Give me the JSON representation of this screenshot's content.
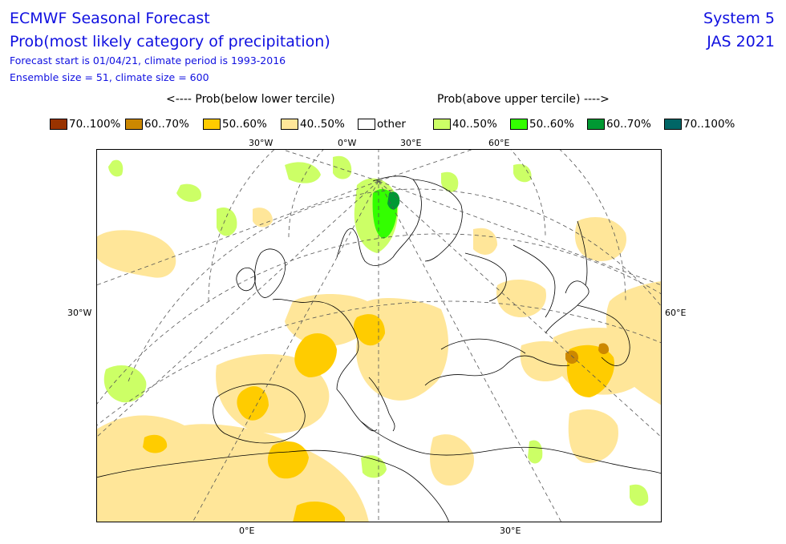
{
  "header": {
    "title": "ECMWF Seasonal Forecast",
    "subtitle": "Prob(most likely category of precipitation)",
    "forecast_info": "Forecast start is 01/04/21, climate period is 1993-2016",
    "ensemble_info": "Ensemble size = 51, climate size = 600",
    "system": "System 5",
    "season": "JAS 2021"
  },
  "legend": {
    "below_header": "<---- Prob(below lower tercile)",
    "above_header": "Prob(above upper tercile) ---->",
    "items": [
      {
        "label": "70..100%",
        "color": "#993300"
      },
      {
        "label": "60..70%",
        "color": "#cc8800"
      },
      {
        "label": "50..60%",
        "color": "#ffcc00"
      },
      {
        "label": "40..50%",
        "color": "#ffe699"
      },
      {
        "label": "other",
        "color": "#ffffff"
      },
      {
        "label": "40..50%",
        "color": "#ccff66"
      },
      {
        "label": "50..60%",
        "color": "#33ff00"
      },
      {
        "label": "60..70%",
        "color": "#009933"
      },
      {
        "label": "70..100%",
        "color": "#006666"
      }
    ]
  },
  "axes": {
    "top_ticks": [
      "30°W",
      "0°W",
      "30°E",
      "60°E"
    ],
    "bottom_ticks": [
      "0°E",
      "30°E"
    ],
    "left_tick": "30°W",
    "right_tick": "60°E"
  },
  "map": {
    "region": "Europe",
    "coastline_color": "#000000",
    "gridline_style": "dashed"
  }
}
